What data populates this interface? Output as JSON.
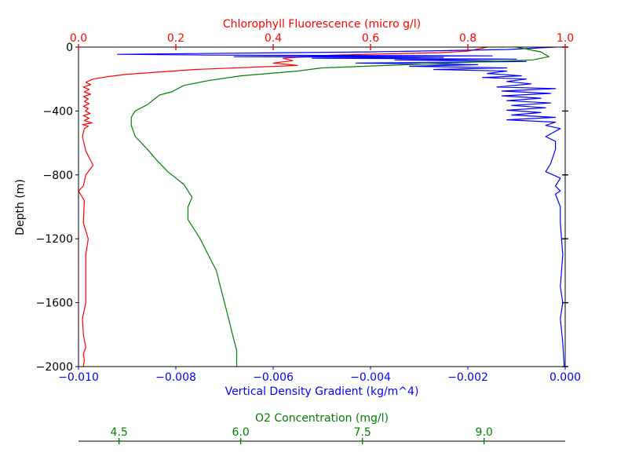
{
  "chart_data": {
    "type": "line",
    "title": "",
    "ylabel": "Depth (m)",
    "ylim": [
      -2000,
      0
    ],
    "y_ticks": [
      0,
      -400,
      -800,
      -1200,
      -1600,
      -2000
    ],
    "y_tick_labels": [
      "0",
      "−400",
      "−800",
      "−1200",
      "−1600",
      "−2000"
    ],
    "axes": {
      "top": {
        "label": "Chlorophyll Fluorescence (micro g/l)",
        "color": "#ff0000",
        "xlim": [
          0.0,
          1.0
        ],
        "ticks": [
          0.0,
          0.2,
          0.4,
          0.6,
          0.8,
          1.0
        ],
        "tick_labels": [
          "0.0",
          "0.2",
          "0.4",
          "0.6",
          "0.8",
          "1.0"
        ]
      },
      "bottom": {
        "label": "Vertical Density Gradient (kg/m^4)",
        "color": "#0000ff",
        "xlim": [
          -0.01,
          0.0
        ],
        "ticks": [
          -0.01,
          -0.008,
          -0.006,
          -0.004,
          -0.002,
          0.0
        ],
        "tick_labels": [
          "−0.010",
          "−0.008",
          "−0.006",
          "−0.004",
          "−0.002",
          "0.000"
        ]
      },
      "detached": {
        "label": "O2 Concentration (mg/l)",
        "color": "#008000",
        "xlim": [
          4.0,
          10.0
        ],
        "ticks": [
          4.5,
          6.0,
          7.5,
          9.0
        ],
        "tick_labels": [
          "4.5",
          "6.0",
          "7.5",
          "9.0"
        ]
      }
    },
    "series": [
      {
        "color": "#ff0000",
        "axis": "top",
        "points": [
          [
            0.84,
            0
          ],
          [
            0.8,
            -25
          ],
          [
            0.74,
            -35
          ],
          [
            0.52,
            -50
          ],
          [
            0.42,
            -70
          ],
          [
            0.44,
            -85
          ],
          [
            0.4,
            -100
          ],
          [
            0.45,
            -115
          ],
          [
            0.24,
            -140
          ],
          [
            0.1,
            -170
          ],
          [
            0.06,
            -185
          ],
          [
            0.03,
            -200
          ],
          [
            0.015,
            -220
          ],
          [
            0.025,
            -235
          ],
          [
            0.01,
            -250
          ],
          [
            0.022,
            -265
          ],
          [
            0.012,
            -280
          ],
          [
            0.025,
            -295
          ],
          [
            0.01,
            -310
          ],
          [
            0.02,
            -325
          ],
          [
            0.012,
            -340
          ],
          [
            0.022,
            -355
          ],
          [
            0.01,
            -370
          ],
          [
            0.02,
            -385
          ],
          [
            0.014,
            -400
          ],
          [
            0.024,
            -415
          ],
          [
            0.01,
            -430
          ],
          [
            0.022,
            -445
          ],
          [
            0.012,
            -460
          ],
          [
            0.028,
            -475
          ],
          [
            0.008,
            -485
          ],
          [
            0.02,
            -495
          ],
          [
            0.012,
            -510
          ],
          [
            0.008,
            -560
          ],
          [
            0.015,
            -650
          ],
          [
            0.03,
            -740
          ],
          [
            0.015,
            -800
          ],
          [
            0.01,
            -870
          ],
          [
            0.0,
            -900
          ],
          [
            0.012,
            -960
          ],
          [
            0.01,
            -1100
          ],
          [
            0.02,
            -1200
          ],
          [
            0.015,
            -1300
          ],
          [
            0.015,
            -1400
          ],
          [
            0.015,
            -1600
          ],
          [
            0.008,
            -1700
          ],
          [
            0.01,
            -1800
          ],
          [
            0.015,
            -1880
          ],
          [
            0.01,
            -1920
          ],
          [
            0.012,
            -1960
          ],
          [
            0.01,
            -2000
          ]
        ]
      },
      {
        "color": "#0000ff",
        "axis": "bottom",
        "points": [
          [
            -0.0002,
            0
          ],
          [
            -0.0012,
            -15
          ],
          [
            -0.004,
            -30
          ],
          [
            -0.0092,
            -45
          ],
          [
            -0.0072,
            -50
          ],
          [
            -0.0015,
            -55
          ],
          [
            -0.0068,
            -60
          ],
          [
            -0.0025,
            -65
          ],
          [
            -0.0052,
            -70
          ],
          [
            -0.001,
            -75
          ],
          [
            -0.0035,
            -80
          ],
          [
            -0.0008,
            -90
          ],
          [
            -0.0043,
            -100
          ],
          [
            -0.0018,
            -110
          ],
          [
            -0.0032,
            -120
          ],
          [
            -0.0012,
            -130
          ],
          [
            -0.0027,
            -140
          ],
          [
            -0.0012,
            -150
          ],
          [
            -0.0016,
            -165
          ],
          [
            -0.0009,
            -180
          ],
          [
            -0.0017,
            -190
          ],
          [
            -0.0008,
            -200
          ],
          [
            -0.0012,
            -215
          ],
          [
            -0.0007,
            -230
          ],
          [
            -0.0014,
            -250
          ],
          [
            -0.0002,
            -260
          ],
          [
            -0.0013,
            -275
          ],
          [
            -0.0003,
            -290
          ],
          [
            -0.0013,
            -305
          ],
          [
            -0.0005,
            -320
          ],
          [
            -0.0012,
            -335
          ],
          [
            -0.0003,
            -350
          ],
          [
            -0.0011,
            -365
          ],
          [
            -0.0004,
            -380
          ],
          [
            -0.0012,
            -395
          ],
          [
            -0.0005,
            -410
          ],
          [
            -0.0011,
            -425
          ],
          [
            -0.0002,
            -440
          ],
          [
            -0.0012,
            -455
          ],
          [
            -0.0002,
            -470
          ],
          [
            -0.0004,
            -490
          ],
          [
            -0.0001,
            -510
          ],
          [
            -0.0004,
            -560
          ],
          [
            -0.0002,
            -590
          ],
          [
            -0.0002,
            -640
          ],
          [
            -0.0003,
            -730
          ],
          [
            -0.0004,
            -780
          ],
          [
            -0.0001,
            -820
          ],
          [
            -0.0002,
            -870
          ],
          [
            -0.0001,
            -900
          ],
          [
            -0.0002,
            -920
          ],
          [
            -0.0001,
            -1000
          ],
          [
            -0.0001,
            -1100
          ],
          [
            -5e-05,
            -1300
          ],
          [
            -0.0001,
            -1500
          ],
          [
            -5e-05,
            -1600
          ],
          [
            -0.0001,
            -1700
          ],
          [
            -5e-05,
            -1850
          ],
          [
            -3e-05,
            -1950
          ],
          [
            -2e-05,
            -2000
          ]
        ]
      },
      {
        "color": "#008000",
        "axis": "detached",
        "points": [
          [
            9.4,
            0
          ],
          [
            9.7,
            -30
          ],
          [
            9.8,
            -60
          ],
          [
            9.6,
            -80
          ],
          [
            7.0,
            -130
          ],
          [
            6.7,
            -150
          ],
          [
            6.0,
            -180
          ],
          [
            5.6,
            -210
          ],
          [
            5.3,
            -240
          ],
          [
            5.15,
            -280
          ],
          [
            5.0,
            -300
          ],
          [
            4.85,
            -360
          ],
          [
            4.7,
            -400
          ],
          [
            4.65,
            -440
          ],
          [
            4.65,
            -490
          ],
          [
            4.7,
            -560
          ],
          [
            4.85,
            -640
          ],
          [
            4.95,
            -700
          ],
          [
            5.1,
            -780
          ],
          [
            5.3,
            -860
          ],
          [
            5.4,
            -940
          ],
          [
            5.35,
            -1000
          ],
          [
            5.35,
            -1080
          ],
          [
            5.5,
            -1200
          ],
          [
            5.6,
            -1300
          ],
          [
            5.7,
            -1400
          ],
          [
            5.75,
            -1500
          ],
          [
            5.8,
            -1600
          ],
          [
            5.85,
            -1700
          ],
          [
            5.9,
            -1800
          ],
          [
            5.95,
            -1900
          ],
          [
            5.95,
            -2000
          ]
        ]
      }
    ]
  }
}
